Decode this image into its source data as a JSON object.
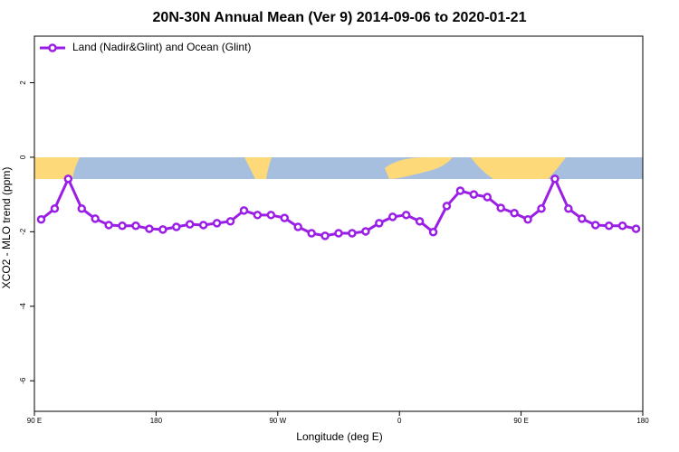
{
  "chart_data": {
    "type": "line",
    "title": "20N-30N Annual Mean (Ver 9)   2014-09-06 to 2020-01-21",
    "xlabel": "Longitude (deg E)",
    "ylabel": "XCO2 - MLO trend (ppm)",
    "x": [
      95,
      105,
      115,
      125,
      135,
      145,
      155,
      165,
      175,
      185,
      195,
      205,
      215,
      225,
      235,
      245,
      255,
      265,
      275,
      285,
      295,
      305,
      315,
      325,
      335,
      345,
      355,
      365,
      375,
      385,
      395,
      405,
      415,
      425,
      435,
      445,
      455,
      465,
      475,
      485,
      495,
      505,
      515,
      525,
      535
    ],
    "series": [
      {
        "name": "Land (Nadir&Glint) and Ocean (Glint)",
        "color": "#9a1ee6",
        "values": [
          -1.67,
          -1.38,
          -0.58,
          -1.38,
          -1.65,
          -1.82,
          -1.84,
          -1.84,
          -1.92,
          -1.94,
          -1.87,
          -1.8,
          -1.82,
          -1.77,
          -1.72,
          -1.43,
          -1.55,
          -1.55,
          -1.63,
          -1.87,
          -2.04,
          -2.11,
          -2.04,
          -2.04,
          -1.99,
          -1.77,
          -1.6,
          -1.55,
          -1.72,
          -2.01,
          -1.31,
          -0.9,
          -1.0,
          -1.07,
          -1.36,
          -1.5,
          -1.67,
          -1.38,
          -0.58,
          -1.38,
          -1.65,
          -1.82,
          -1.84,
          -1.84,
          -1.92
        ]
      }
    ],
    "xlim": [
      90,
      540
    ],
    "xticks": [
      {
        "value": 90,
        "label": "90 E"
      },
      {
        "value": 180,
        "label": "180"
      },
      {
        "value": 270,
        "label": "90 W"
      },
      {
        "value": 360,
        "label": "0"
      },
      {
        "value": 450,
        "label": "90 E"
      },
      {
        "value": 540,
        "label": "180"
      }
    ],
    "ylim": [
      -6.82,
      3.25
    ],
    "yticks": [
      -6,
      -4,
      -2,
      0,
      2
    ],
    "legend": "top-left"
  }
}
